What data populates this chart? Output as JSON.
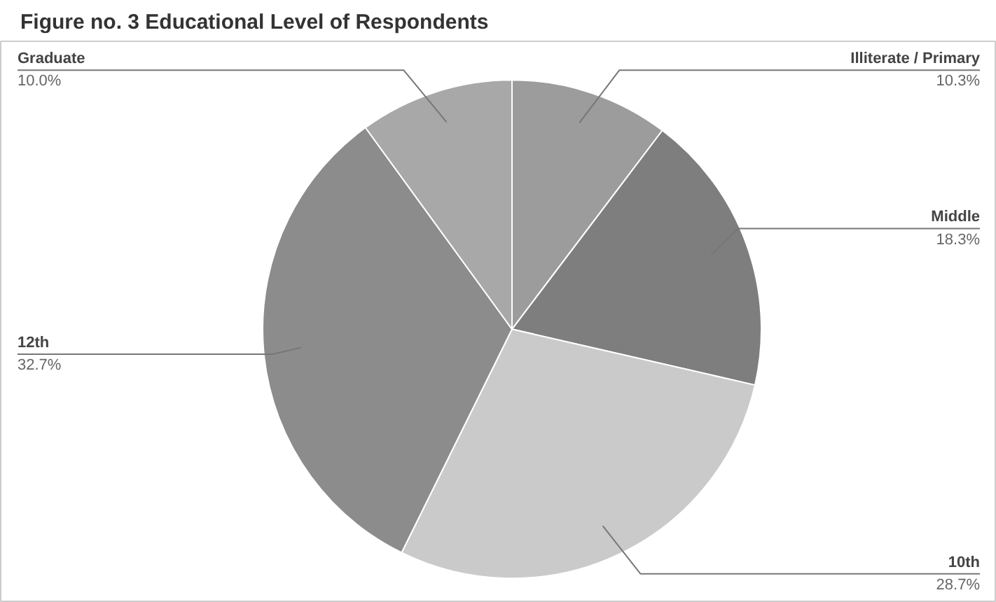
{
  "chart_data": {
    "type": "pie",
    "title": "Figure no. 3 Educational Level of Respondents",
    "categories": [
      "Illiterate / Primary",
      "Middle",
      "10th",
      "12th",
      "Graduate"
    ],
    "values": [
      10.3,
      18.3,
      28.7,
      32.7,
      10.0
    ],
    "value_labels": [
      "10.3%",
      "18.3%",
      "28.7%",
      "32.7%",
      "10.0%"
    ],
    "colors": [
      "#9c9c9c",
      "#7e7e7e",
      "#cacaca",
      "#8c8c8c",
      "#a8a8a8"
    ]
  }
}
